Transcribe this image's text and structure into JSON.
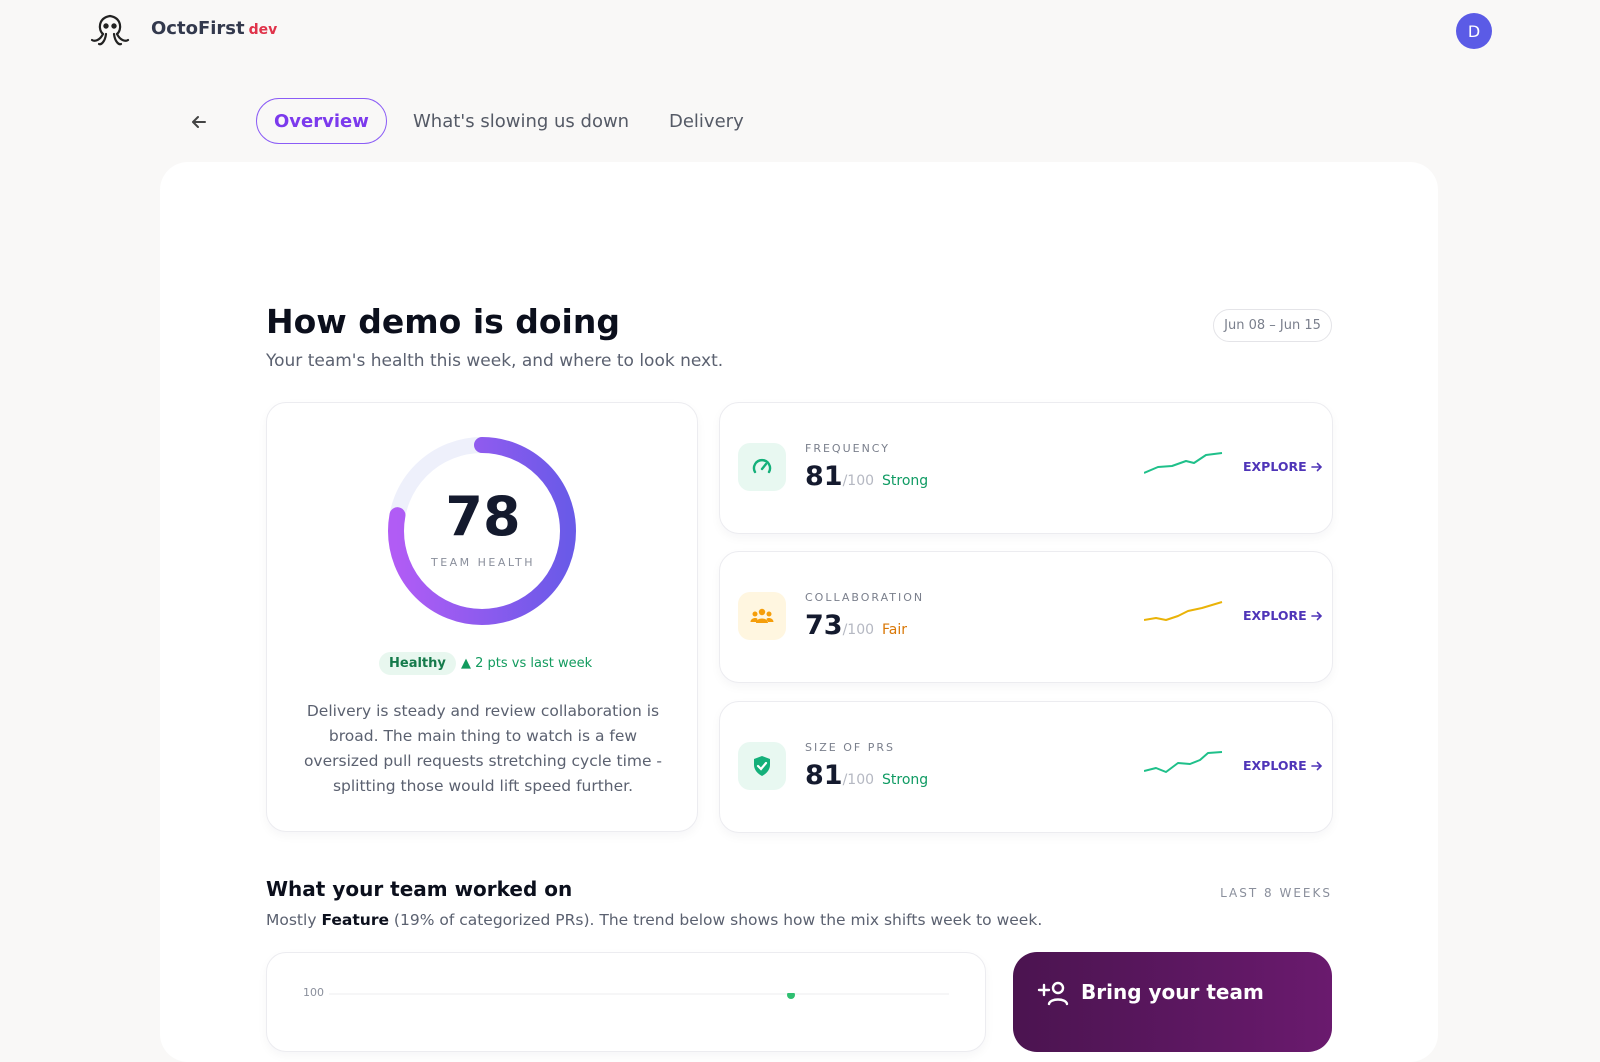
{
  "brand": {
    "name": "OctoFirst",
    "env": "dev"
  },
  "user": {
    "initial": "D"
  },
  "tabs": [
    "Overview",
    "What's slowing us down",
    "Delivery"
  ],
  "header": {
    "title": "How demo is doing",
    "subtitle": "Your team's health this week, and where to look next.",
    "date_range": "Jun 08 – Jun 15"
  },
  "health": {
    "score": 78,
    "label": "TEAM HEALTH",
    "status": "Healthy",
    "change": "▲ 2 pts vs last week",
    "summary": "Delivery is steady and review collaboration is broad. The main thing to watch is a few oversized pull requests stretching cycle time - splitting those would lift speed further."
  },
  "metrics": [
    {
      "label": "FREQUENCY",
      "score": 81,
      "max": "/100",
      "rating": "Strong",
      "action": "EXPLORE"
    },
    {
      "label": "COLLABORATION",
      "score": 73,
      "max": "/100",
      "rating": "Fair",
      "action": "EXPLORE"
    },
    {
      "label": "SIZE OF PRS",
      "score": 81,
      "max": "/100",
      "rating": "Strong",
      "action": "EXPLORE"
    }
  ],
  "worked_on": {
    "title": "What your team worked on",
    "period": "LAST 8 WEEKS",
    "summary_prefix": "Mostly",
    "summary_highlight": "Feature",
    "summary_rest": "(19% of categorized PRs). The trend below shows how the mix shifts week to week.",
    "chart_top_tick": 100
  },
  "cta": {
    "title": "Bring your team"
  }
}
